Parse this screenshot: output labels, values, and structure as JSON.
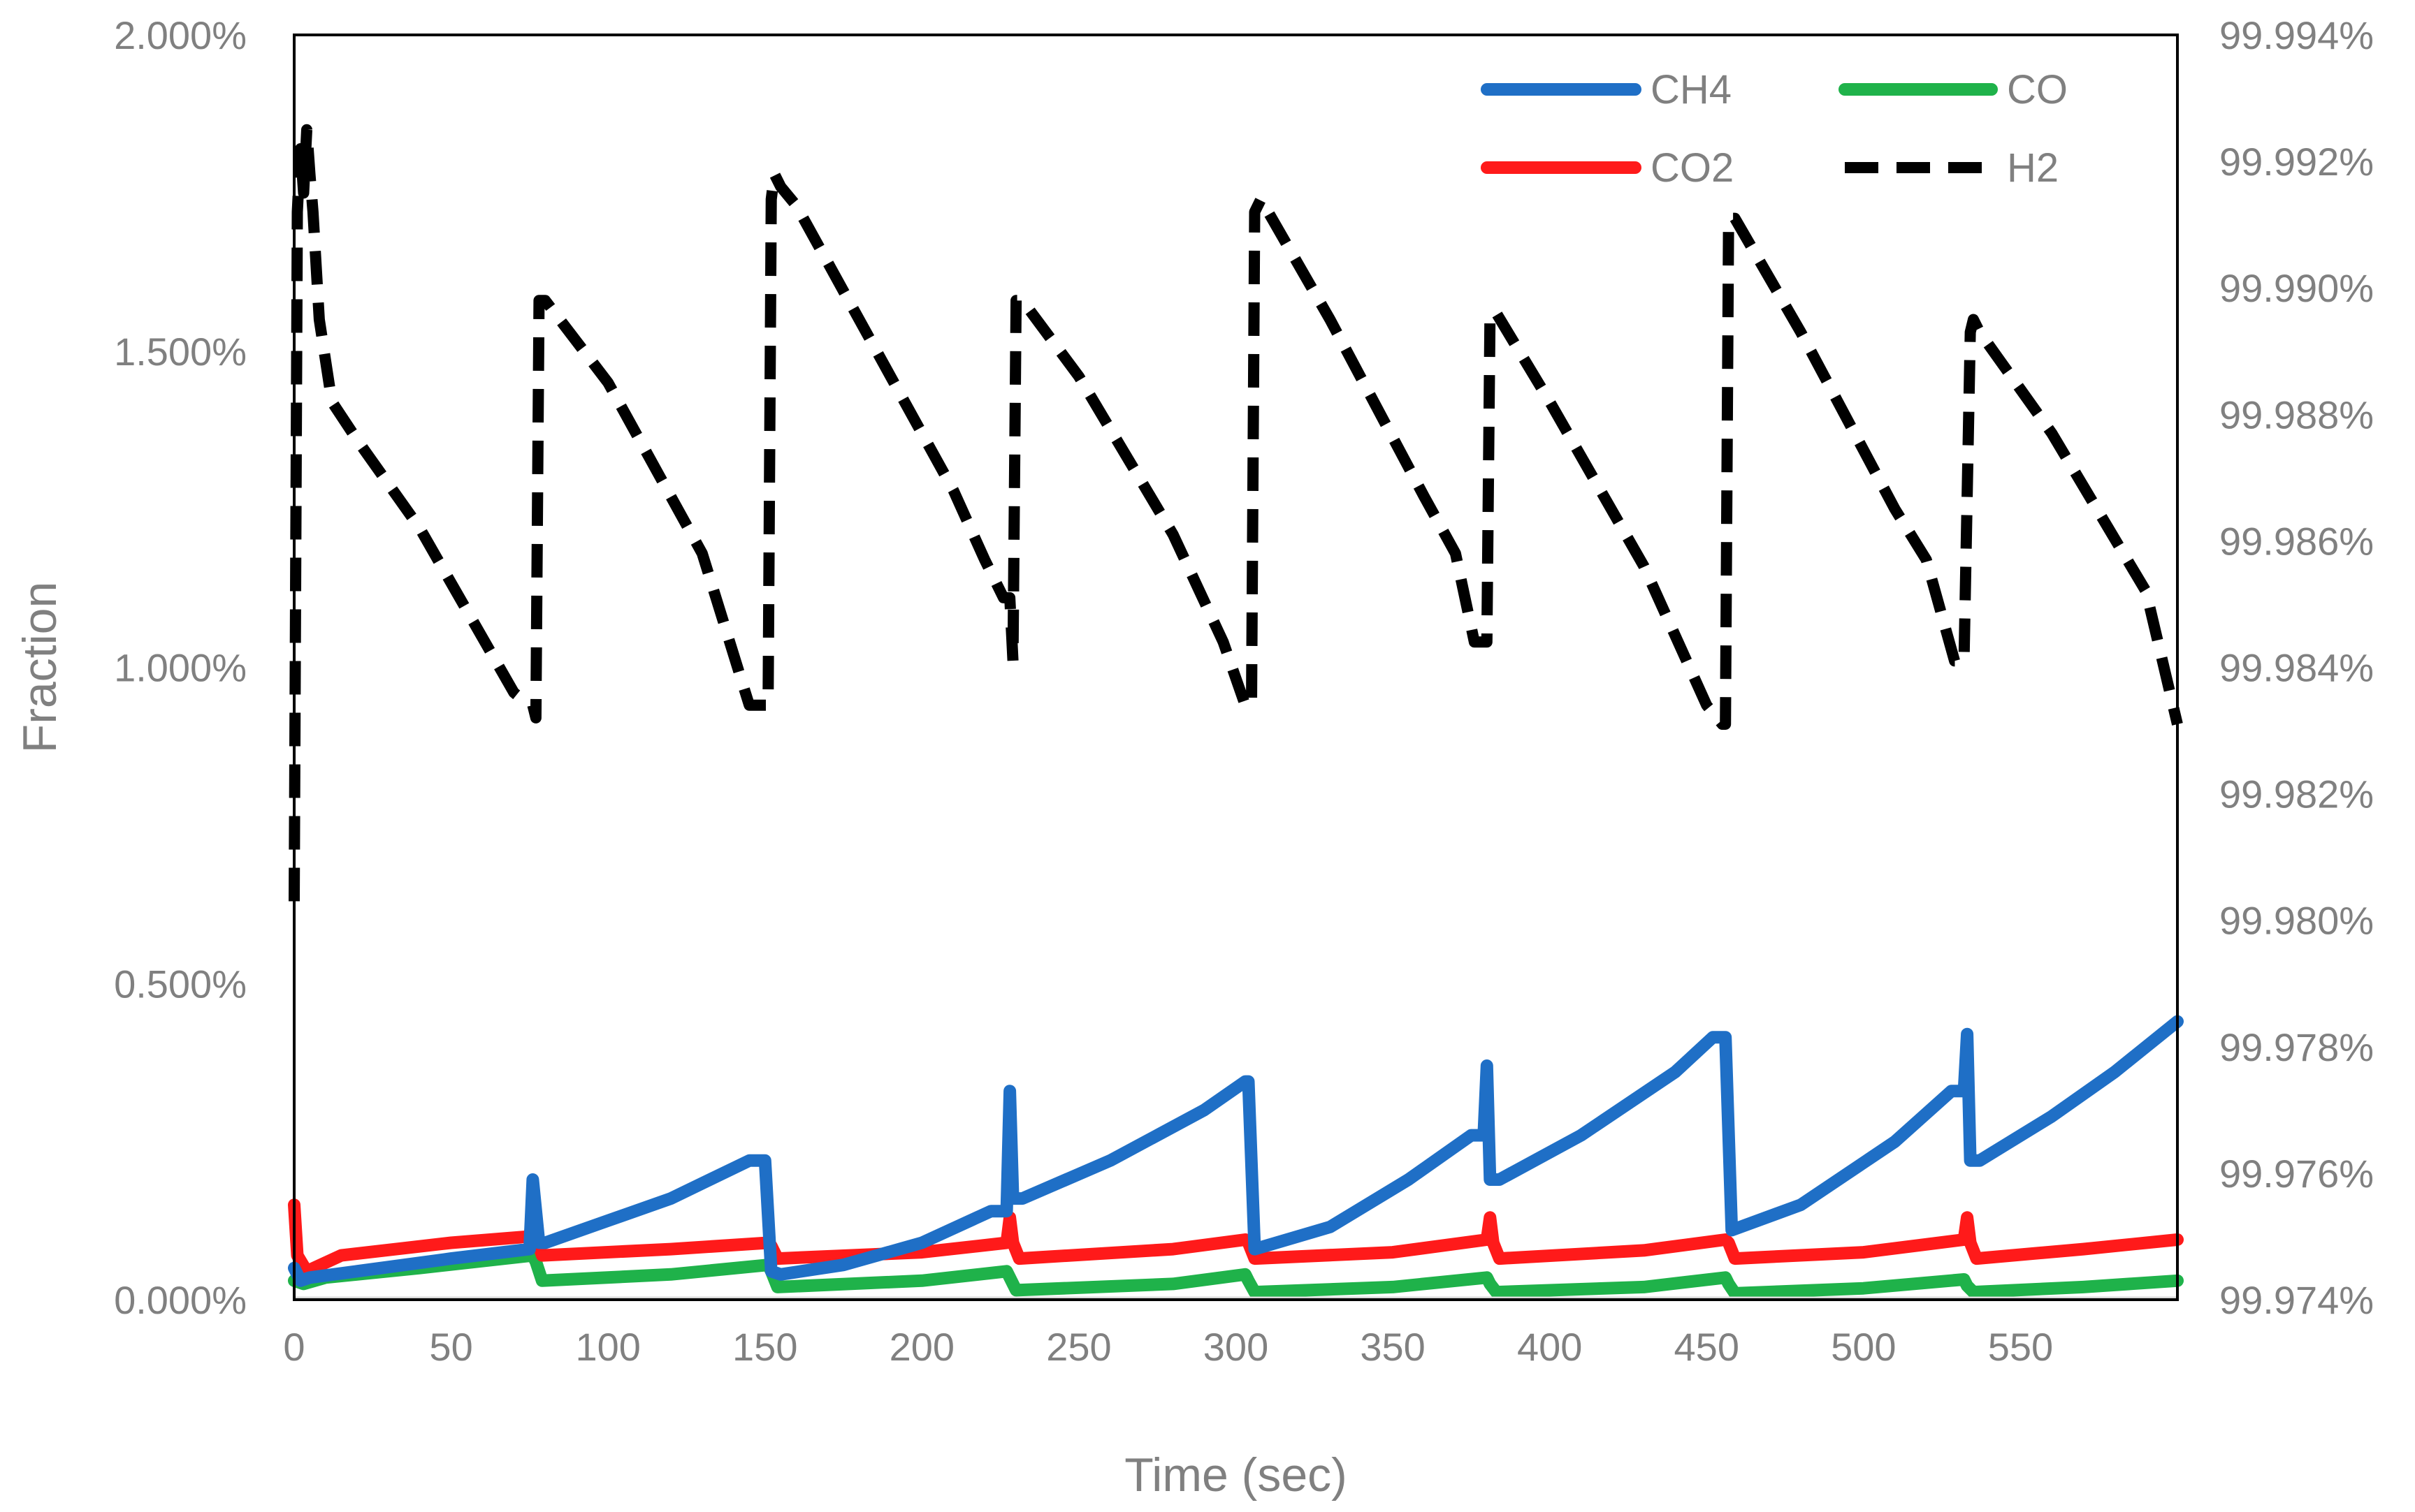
{
  "chart_data": {
    "type": "line",
    "xlabel": "Time (sec)",
    "ylabel": "Fraction",
    "x_range": [
      0,
      600
    ],
    "x_ticks": [
      "0",
      "50",
      "100",
      "150",
      "200",
      "250",
      "300",
      "350",
      "400",
      "450",
      "500",
      "550"
    ],
    "x_tick_values": [
      0,
      50,
      100,
      150,
      200,
      250,
      300,
      350,
      400,
      450,
      500,
      550
    ],
    "y_left_range": [
      0,
      2
    ],
    "y_left_ticks": [
      "0.000%",
      "0.500%",
      "1.000%",
      "1.500%",
      "2.000%"
    ],
    "y_left_tick_values": [
      0,
      0.5,
      1.0,
      1.5,
      2.0
    ],
    "y_right_range": [
      99.974,
      99.994
    ],
    "y_right_ticks": [
      "99.974%",
      "99.976%",
      "99.978%",
      "99.980%",
      "99.982%",
      "99.984%",
      "99.986%",
      "99.988%",
      "99.990%",
      "99.992%",
      "99.994%"
    ],
    "y_right_tick_values": [
      99.974,
      99.976,
      99.978,
      99.98,
      99.982,
      99.984,
      99.986,
      99.988,
      99.99,
      99.992,
      99.994
    ],
    "grid": false,
    "legend_position": "top-right",
    "series": [
      {
        "name": "CH4",
        "axis": "left",
        "color": "#1f6fc6",
        "dash": "solid",
        "x": [
          0,
          2,
          5,
          20,
          50,
          75,
          76,
          78,
          80,
          100,
          120,
          145,
          150,
          152,
          155,
          175,
          200,
          222,
          227,
          228,
          229,
          232,
          260,
          290,
          303,
          304,
          306,
          330,
          355,
          375,
          379,
          380,
          381,
          384,
          410,
          440,
          452,
          456,
          458,
          480,
          510,
          528,
          532,
          533,
          534,
          537,
          560,
          580,
          600
        ],
        "y": [
          0.05,
          0.03,
          0.035,
          0.045,
          0.065,
          0.08,
          0.19,
          0.09,
          0.09,
          0.125,
          0.16,
          0.22,
          0.22,
          0.045,
          0.04,
          0.055,
          0.09,
          0.14,
          0.14,
          0.33,
          0.16,
          0.16,
          0.22,
          0.3,
          0.345,
          0.345,
          0.08,
          0.115,
          0.19,
          0.26,
          0.26,
          0.37,
          0.19,
          0.19,
          0.26,
          0.36,
          0.415,
          0.415,
          0.11,
          0.15,
          0.25,
          0.33,
          0.33,
          0.42,
          0.22,
          0.22,
          0.29,
          0.36,
          0.44
        ]
      },
      {
        "name": "CO",
        "axis": "left",
        "color": "#1fb24a",
        "dash": "solid",
        "x": [
          0,
          3,
          10,
          40,
          76,
          77,
          79,
          120,
          151,
          152,
          154,
          200,
          227,
          228,
          230,
          280,
          303,
          304,
          306,
          350,
          380,
          381,
          383,
          430,
          456,
          457,
          459,
          500,
          532,
          533,
          535,
          570,
          600
        ],
        "y": [
          0.03,
          0.025,
          0.035,
          0.05,
          0.07,
          0.06,
          0.03,
          0.04,
          0.055,
          0.045,
          0.02,
          0.03,
          0.045,
          0.035,
          0.015,
          0.025,
          0.04,
          0.03,
          0.012,
          0.02,
          0.035,
          0.025,
          0.012,
          0.02,
          0.035,
          0.025,
          0.01,
          0.018,
          0.032,
          0.022,
          0.012,
          0.02,
          0.03
        ]
      },
      {
        "name": "CO2",
        "axis": "left",
        "color": "#ff1a1a",
        "dash": "solid",
        "x": [
          0,
          1,
          4,
          15,
          50,
          75,
          76,
          77,
          79,
          120,
          151,
          152,
          154,
          200,
          227,
          228,
          229,
          231,
          280,
          303,
          304,
          306,
          350,
          380,
          381,
          382,
          384,
          430,
          456,
          457,
          459,
          500,
          532,
          533,
          534,
          536,
          570,
          600
        ],
        "y": [
          0.15,
          0.07,
          0.045,
          0.07,
          0.09,
          0.1,
          0.13,
          0.1,
          0.07,
          0.08,
          0.09,
          0.085,
          0.065,
          0.075,
          0.09,
          0.13,
          0.09,
          0.065,
          0.08,
          0.095,
          0.09,
          0.065,
          0.075,
          0.095,
          0.13,
          0.09,
          0.065,
          0.078,
          0.095,
          0.09,
          0.065,
          0.075,
          0.095,
          0.13,
          0.09,
          0.065,
          0.08,
          0.095
        ]
      },
      {
        "name": "H2",
        "axis": "right",
        "color": "#000000",
        "dash": "dashed",
        "x": [
          0,
          1,
          2,
          3,
          4,
          5,
          6,
          8,
          12,
          20,
          40,
          70,
          75,
          76,
          77,
          78,
          80,
          100,
          130,
          145,
          150,
          151,
          152,
          153,
          155,
          160,
          180,
          210,
          220,
          226,
          228,
          229,
          230,
          232,
          250,
          280,
          296,
          303,
          304,
          305,
          306,
          308,
          330,
          360,
          370,
          376,
          378,
          379,
          380,
          381,
          383,
          400,
          430,
          450,
          455,
          456,
          457,
          459,
          480,
          510,
          520,
          529,
          532,
          534,
          535,
          537,
          560,
          590,
          600
        ],
        "y": [
          99.9803,
          99.9912,
          99.9922,
          99.9915,
          99.9925,
          99.9918,
          99.9912,
          99.9895,
          99.9882,
          99.9876,
          99.9862,
          99.9836,
          99.9834,
          99.9834,
          99.9832,
          99.9898,
          99.9898,
          99.9885,
          99.9858,
          99.9834,
          99.9834,
          99.9834,
          99.9914,
          99.9918,
          99.9916,
          99.9913,
          99.9895,
          99.9868,
          99.9857,
          99.9851,
          99.9851,
          99.9841,
          99.9898,
          99.9898,
          99.9886,
          99.9861,
          99.9844,
          99.9834,
          99.9834,
          99.9834,
          99.9912,
          99.9914,
          99.9895,
          99.9867,
          99.9858,
          99.9844,
          99.9844,
          99.9844,
          99.9844,
          99.9896,
          99.9896,
          99.9882,
          99.9856,
          99.9834,
          99.9831,
          99.9831,
          99.9911,
          99.9911,
          99.9893,
          99.9865,
          99.9857,
          99.9841,
          99.9841,
          99.9893,
          99.9895,
          99.9893,
          99.9877,
          99.9852,
          99.9831
        ]
      }
    ]
  }
}
